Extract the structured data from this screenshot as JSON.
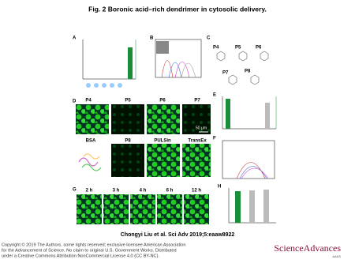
{
  "header": {
    "title": "Fig. 2 Boronic acid–rich dendrimer in cytosolic delivery."
  },
  "panels": {
    "a": {
      "label": "A"
    },
    "b": {
      "label": "B"
    },
    "c": {
      "label": "C",
      "compounds": [
        "P4",
        "P5",
        "P6",
        "P7",
        "P8"
      ]
    },
    "d": {
      "label": "D",
      "columns": [
        "P4",
        "P5",
        "P6",
        "P7"
      ],
      "row2": [
        "BSA",
        "P8",
        "PULSin",
        "TransEx"
      ],
      "scale_bar": "50 μm"
    },
    "e": {
      "label": "E"
    },
    "f": {
      "label": "F"
    },
    "g": {
      "label": "G",
      "times": [
        "2 h",
        "3 h",
        "4 h",
        "6 h",
        "12 h"
      ]
    },
    "h": {
      "label": "H"
    }
  },
  "citation": "Chongyi Liu et al. Sci Adv 2019;5:eaaw8922",
  "copyright": [
    "Copyright © 2019 The Authors, some rights reserved; exclusive licensee American Association",
    "for the Advancement of Science. No claim to original U.S. Government Works. Distributed",
    "under a Creative Commons Attribution NonCommercial License 4.0 (CC BY-NC)."
  ],
  "logo": {
    "name": "ScienceAdvances",
    "publisher": "AAAS"
  }
}
